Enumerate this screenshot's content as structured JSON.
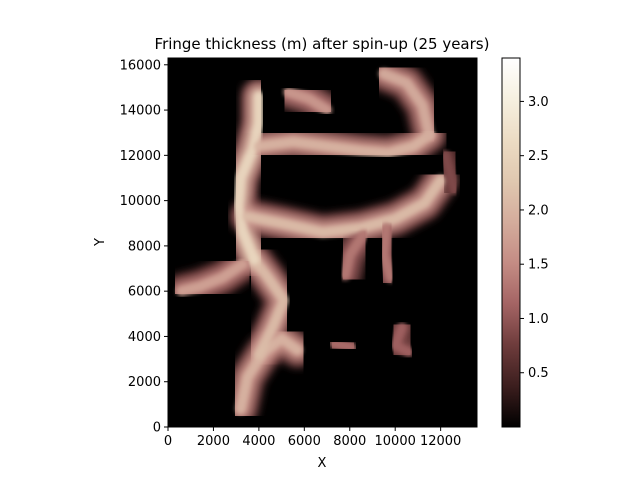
{
  "chart_data": {
    "type": "heatmap",
    "title": "Fringe thickness (m) after spin-up (25 years)",
    "xlabel": "X",
    "ylabel": "Y",
    "xlim": [
      0,
      13600
    ],
    "ylim": [
      0,
      16300
    ],
    "xticks": [
      0,
      2000,
      4000,
      6000,
      8000,
      10000,
      12000
    ],
    "yticks": [
      0,
      2000,
      4000,
      6000,
      8000,
      10000,
      12000,
      14000,
      16000
    ],
    "colorbar": {
      "range": [
        0,
        3.4
      ],
      "ticks": [
        0.5,
        1.0,
        1.5,
        2.0,
        2.5,
        3.0
      ],
      "colormap": [
        "#000000",
        "#3c1e1e",
        "#6e3c3c",
        "#a46464",
        "#c48c84",
        "#d4ac9c",
        "#e0c8b0",
        "#ecdcc4",
        "#f6f0e0",
        "#ffffff"
      ]
    },
    "ridges": [
      {
        "path": [
          [
            3200,
            800
          ],
          [
            3500,
            2200
          ],
          [
            4200,
            3300
          ],
          [
            5000,
            3900
          ],
          [
            5700,
            3400
          ]
        ],
        "value": 1.8
      },
      {
        "path": [
          [
            4000,
            3200
          ],
          [
            4600,
            4400
          ],
          [
            5100,
            5600
          ],
          [
            4400,
            6600
          ],
          [
            3800,
            7400
          ]
        ],
        "value": 1.9
      },
      {
        "path": [
          [
            3800,
            7400
          ],
          [
            3300,
            8600
          ],
          [
            3100,
            9800
          ],
          [
            3200,
            11000
          ],
          [
            3700,
            12200
          ],
          [
            4000,
            13400
          ],
          [
            4000,
            14600
          ]
        ],
        "value": 2.3
      },
      {
        "path": [
          [
            4000,
            12400
          ],
          [
            5500,
            12600
          ],
          [
            7000,
            12400
          ],
          [
            8500,
            12200
          ],
          [
            9700,
            12100
          ],
          [
            10800,
            12400
          ],
          [
            11500,
            12900
          ]
        ],
        "value": 1.8
      },
      {
        "path": [
          [
            11500,
            12900
          ],
          [
            11200,
            14200
          ],
          [
            10500,
            15200
          ],
          [
            9500,
            15600
          ]
        ],
        "value": 1.7
      },
      {
        "path": [
          [
            3500,
            9300
          ],
          [
            5000,
            9000
          ],
          [
            6800,
            8600
          ],
          [
            8500,
            8800
          ],
          [
            10000,
            9200
          ],
          [
            11300,
            9900
          ],
          [
            12000,
            10900
          ]
        ],
        "value": 1.9
      },
      {
        "path": [
          [
            3300,
            7200
          ],
          [
            2400,
            6600
          ],
          [
            1400,
            6200
          ],
          [
            600,
            6000
          ]
        ],
        "value": 1.6
      },
      {
        "path": [
          [
            5300,
            14800
          ],
          [
            6200,
            14500
          ],
          [
            7000,
            14000
          ]
        ],
        "value": 1.5
      },
      {
        "path": [
          [
            8600,
            8500
          ],
          [
            8000,
            7600
          ],
          [
            7800,
            6700
          ]
        ],
        "value": 1.2
      },
      {
        "path": [
          [
            9600,
            8800
          ],
          [
            9500,
            7600
          ],
          [
            9800,
            6600
          ]
        ],
        "value": 1.2
      },
      {
        "path": [
          [
            10300,
            4400
          ],
          [
            10000,
            3600
          ],
          [
            10600,
            3300
          ]
        ],
        "value": 1.0
      },
      {
        "path": [
          [
            7300,
            3700
          ],
          [
            8100,
            3500
          ]
        ],
        "value": 1.1
      },
      {
        "path": [
          [
            12200,
            12000
          ],
          [
            12600,
            10500
          ]
        ],
        "value": 0.8
      }
    ]
  }
}
